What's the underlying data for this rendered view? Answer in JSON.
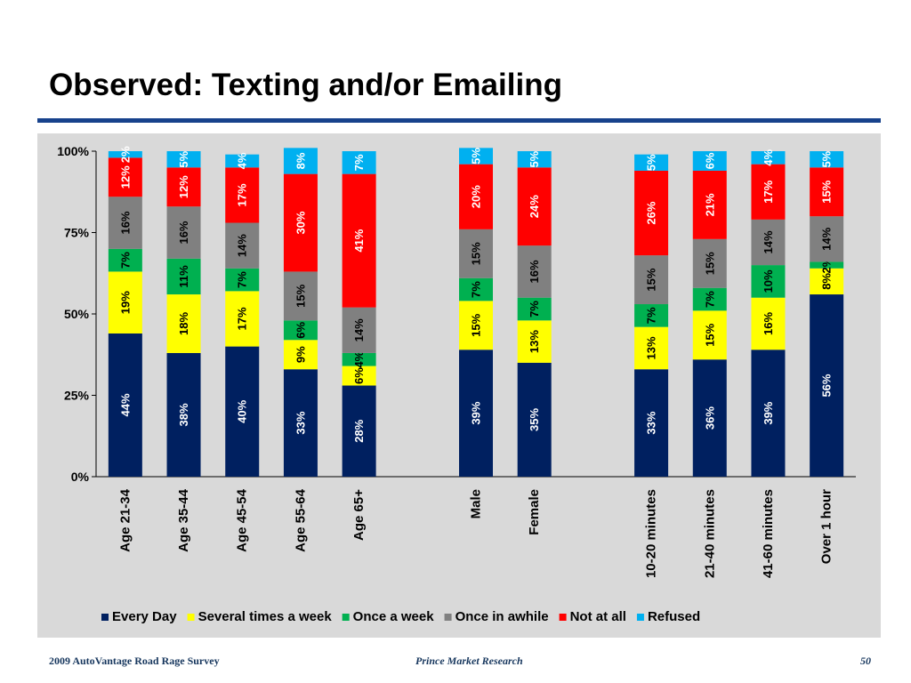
{
  "slide": {
    "title": "Observed: Texting and/or Emailing",
    "footer_left": "2009 AutoVantage Road Rage Survey",
    "footer_center": "Prince Market Research",
    "page_number": "50"
  },
  "chart_data": {
    "type": "bar",
    "stacked": true,
    "title": "",
    "xlabel": "",
    "ylabel": "",
    "ylim": [
      0,
      100
    ],
    "y_ticks": [
      "0%",
      "25%",
      "50%",
      "75%",
      "100%"
    ],
    "grid": false,
    "legend_position": "bottom",
    "categories": [
      "Age 21-34",
      "Age 35-44",
      "Age 45-54",
      "Age 55-64",
      "Age 65+",
      "Male",
      "Female",
      "10-20 minutes",
      "21-40 minutes",
      "41-60 minutes",
      "Over 1 hour"
    ],
    "category_groups": [
      [
        0,
        1,
        2,
        3,
        4
      ],
      [
        5,
        6
      ],
      [
        7,
        8,
        9,
        10
      ]
    ],
    "series": [
      {
        "name": "Every Day",
        "color": "#002060",
        "values": [
          44,
          38,
          40,
          33,
          28,
          39,
          35,
          33,
          36,
          39,
          56
        ],
        "labels": [
          "44%",
          "38%",
          "40%",
          "33%",
          "28%",
          "39%",
          "35%",
          "33%",
          "36%",
          "39%",
          "56%"
        ]
      },
      {
        "name": "Several times a week",
        "color": "#ffff00",
        "values": [
          19,
          18,
          17,
          9,
          6,
          15,
          13,
          13,
          15,
          16,
          8
        ],
        "labels": [
          "19%",
          "18%",
          "17%",
          "9%",
          "6%",
          "15%",
          "13%",
          "13%",
          "15%",
          "16%",
          "8%"
        ]
      },
      {
        "name": "Once a week",
        "color": "#00b050",
        "values": [
          7,
          11,
          7,
          6,
          4,
          7,
          7,
          7,
          7,
          10,
          2
        ],
        "labels": [
          "7%",
          "11%",
          "7%",
          "6%",
          "4%",
          "7%",
          "7%",
          "7%",
          "7%",
          "10%",
          "2%"
        ]
      },
      {
        "name": "Once in awhile",
        "color": "#808080",
        "values": [
          16,
          16,
          14,
          15,
          14,
          15,
          16,
          15,
          15,
          14,
          14
        ],
        "labels": [
          "16%",
          "16%",
          "14%",
          "15%",
          "14%",
          "15%",
          "16%",
          "15%",
          "15%",
          "14%",
          "14%"
        ]
      },
      {
        "name": "Not at all",
        "color": "#ff0000",
        "values": [
          12,
          12,
          17,
          30,
          41,
          20,
          24,
          26,
          21,
          17,
          15
        ],
        "labels": [
          "12%",
          "12%",
          "17%",
          "30%",
          "41%",
          "20%",
          "24%",
          "26%",
          "21%",
          "17%",
          "15%"
        ]
      },
      {
        "name": "Refused",
        "color": "#00b0f0",
        "values": [
          2,
          5,
          4,
          8,
          7,
          5,
          5,
          5,
          6,
          4,
          5
        ],
        "labels": [
          "2%",
          "5%",
          "4%",
          "8%",
          "7%",
          "5%",
          "5%",
          "5%",
          "6%",
          "4%",
          "5%"
        ]
      }
    ]
  }
}
